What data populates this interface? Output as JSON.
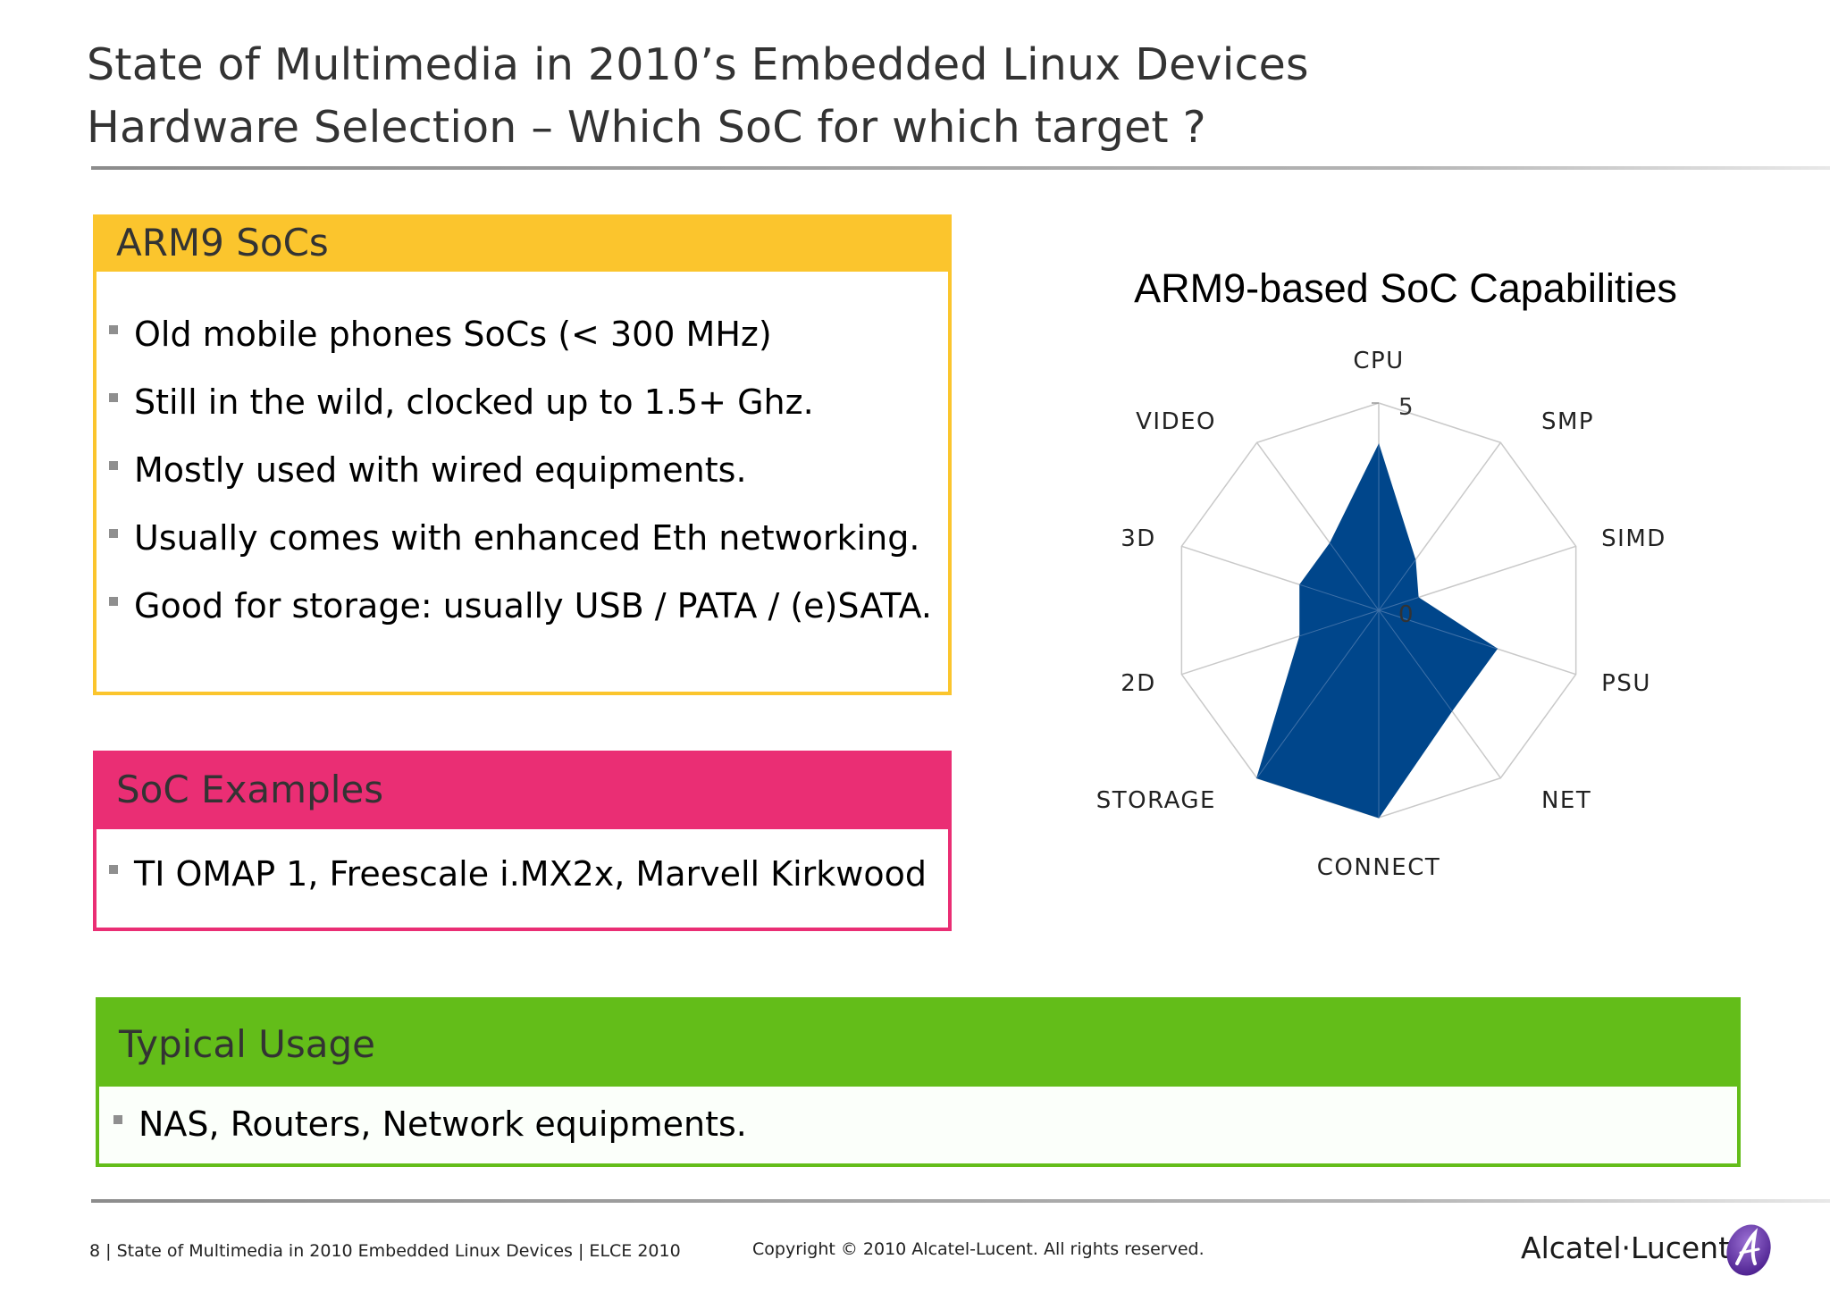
{
  "slide": {
    "title_line1": "State of Multimedia in 2010’s Embedded Linux Devices",
    "title_line2": "Hardware Selection – Which SoC for which target ?"
  },
  "arm9_panel": {
    "header": "ARM9 SoCs",
    "bullets": [
      "Old mobile phones SoCs (< 300 MHz)",
      "Still in the wild, clocked up to 1.5+ Ghz.",
      "Mostly used with wired equipments.",
      "Usually comes with enhanced Eth networking.",
      "Good for storage: usually USB / PATA / (e)SATA."
    ]
  },
  "examples_panel": {
    "header": "SoC Examples",
    "bullets": [
      "TI OMAP 1, Freescale i.MX2x, Marvell Kirkwood"
    ]
  },
  "usage_panel": {
    "header": "Typical Usage",
    "bullets": [
      "NAS, Routers, Network equipments."
    ]
  },
  "footer": {
    "left": "8 | State of Multimedia in 2010 Embedded Linux Devices | ELCE 2010",
    "center": "Copyright © 2010 Alcatel-Lucent. All rights reserved.",
    "logo": "Alcatel·Lucent"
  },
  "colors": {
    "arm9_accent": "#fbc52d",
    "examples_accent": "#ea2e74",
    "usage_accent": "#63bd19",
    "series_fill": "#00468b"
  },
  "chart_data": {
    "type": "radar",
    "title": "ARM9-based SoC Capabilities",
    "axes": [
      "CPU",
      "SMP",
      "SIMD",
      "PSU",
      "NET",
      "CONNECT",
      "STORAGE",
      "2D",
      "3D",
      "VIDEO"
    ],
    "rmin": 0,
    "rmax": 5,
    "tick_labels": [
      "5",
      "0"
    ],
    "grid": true,
    "legend": "none",
    "series": [
      {
        "values": [
          4,
          1.5,
          1,
          3,
          3,
          5,
          5,
          2,
          2,
          2
        ]
      }
    ]
  }
}
